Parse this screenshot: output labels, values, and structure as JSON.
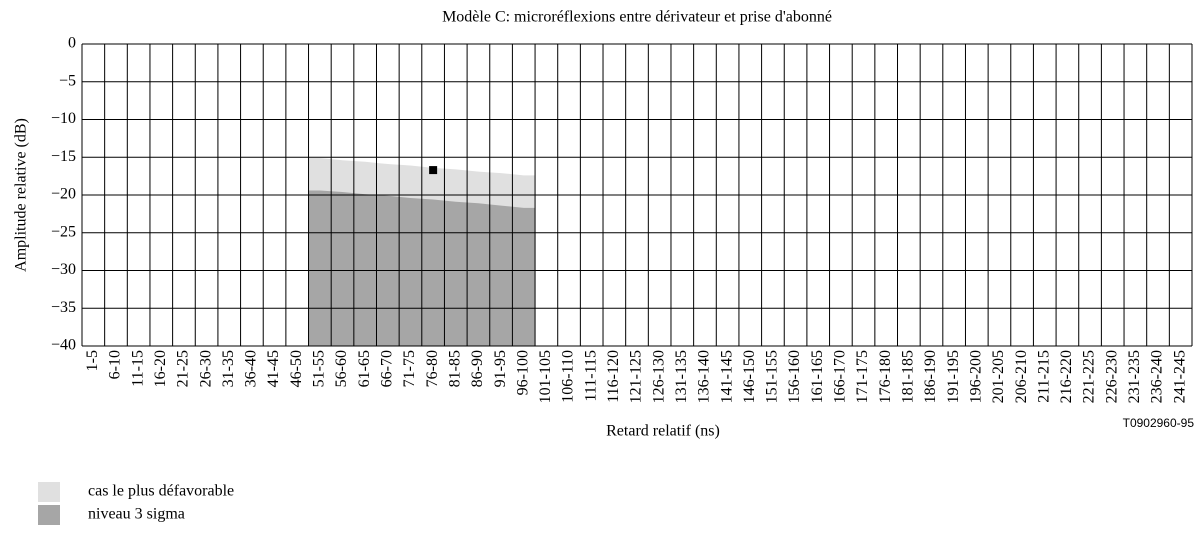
{
  "chart_data": {
    "type": "area",
    "title": "Modèle C: microréflexions entre dérivateur et prise d'abonné",
    "x_label": "Retard relatif (ns)",
    "y_label": "Amplitude relative (dB)",
    "annotation": "T0902960-95",
    "categories": [
      "1-5",
      "6-10",
      "11-15",
      "16-20",
      "21-25",
      "26-30",
      "31-35",
      "36-40",
      "41-45",
      "46-50",
      "51-55",
      "56-60",
      "61-65",
      "66-70",
      "71-75",
      "76-80",
      "81-85",
      "86-90",
      "91-95",
      "96-100",
      "101-105",
      "106-110",
      "111-115",
      "116-120",
      "121-125",
      "126-130",
      "131-135",
      "136-140",
      "141-145",
      "146-150",
      "151-155",
      "156-160",
      "161-165",
      "166-170",
      "171-175",
      "176-180",
      "181-185",
      "186-190",
      "191-195",
      "196-200",
      "201-205",
      "206-210",
      "211-215",
      "216-220",
      "221-225",
      "226-230",
      "231-235",
      "236-240",
      "241-245"
    ],
    "series": [
      {
        "name": "cas le plus défavorable",
        "color": "#e0e0e0",
        "values": [
          null,
          null,
          null,
          null,
          null,
          null,
          null,
          null,
          null,
          null,
          -15.1,
          -15.4,
          -15.6,
          -15.9,
          -16.1,
          -16.4,
          -16.6,
          -16.9,
          -17.1,
          -17.4,
          null,
          null,
          null,
          null,
          null,
          null,
          null,
          null,
          null,
          null,
          null,
          null,
          null,
          null,
          null,
          null,
          null,
          null,
          null,
          null,
          null,
          null,
          null,
          null,
          null,
          null,
          null,
          null,
          null
        ]
      },
      {
        "name": "niveau 3 sigma",
        "color": "#a6a6a6",
        "values": [
          null,
          null,
          null,
          null,
          null,
          null,
          null,
          null,
          null,
          null,
          -19.4,
          -19.6,
          -19.9,
          -20.1,
          -20.4,
          -20.6,
          -20.9,
          -21.1,
          -21.4,
          -21.7,
          null,
          null,
          null,
          null,
          null,
          null,
          null,
          null,
          null,
          null,
          null,
          null,
          null,
          null,
          null,
          null,
          null,
          null,
          null,
          null,
          null,
          null,
          null,
          null,
          null,
          null,
          null,
          null,
          null
        ]
      }
    ],
    "points": [
      {
        "category": "76-80",
        "value": -16.7,
        "color": "#000000"
      }
    ],
    "ylim": [
      -40,
      0
    ],
    "yticks": [
      0,
      {
        "value": -5,
        "label": "−5"
      },
      {
        "value": -10,
        "label": "−10"
      },
      {
        "value": -15,
        "label": "−15"
      },
      {
        "value": -20,
        "label": "−20"
      },
      {
        "value": -25,
        "label": "−25"
      },
      {
        "value": -30,
        "label": "−30"
      },
      {
        "value": -35,
        "label": "−35"
      },
      {
        "value": -40,
        "label": "−40"
      }
    ],
    "grid": true
  }
}
